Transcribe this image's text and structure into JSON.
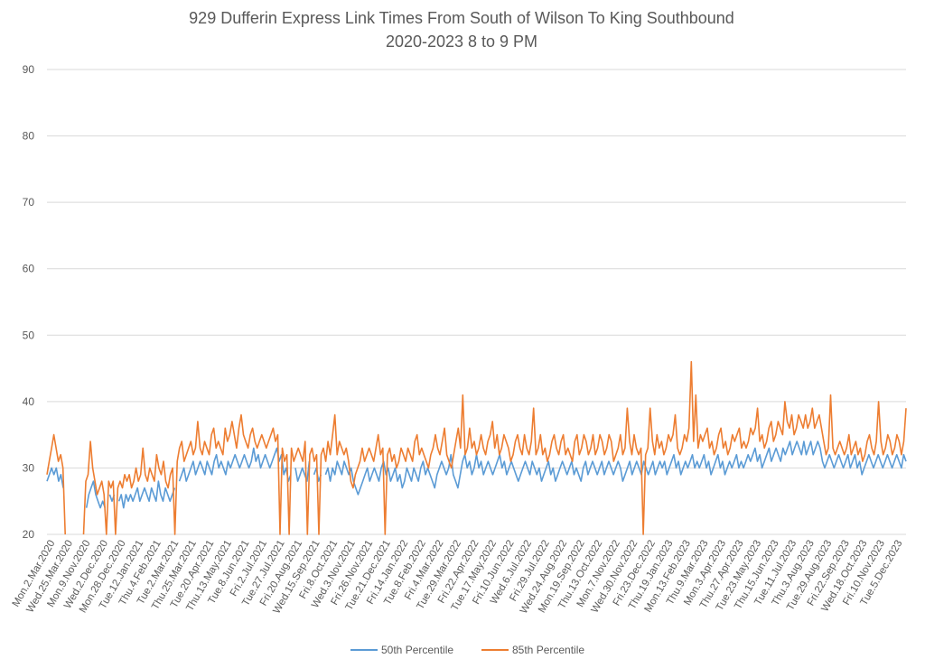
{
  "chart_data": {
    "type": "line",
    "title": "929 Dufferin Express Link Times From South of Wilson To King Southbound",
    "subtitle": "2020-2023 8 to 9 PM",
    "xlabel": "",
    "ylabel": "",
    "ylim": [
      20,
      90
    ],
    "yticks": [
      20,
      30,
      40,
      50,
      60,
      70,
      80,
      90
    ],
    "grid": true,
    "legend_position": "bottom",
    "x_tick_labels": [
      "Mon.2.Mar.2020",
      "Wed.25.Mar.2020",
      "Mon.9.Nov.2020",
      "Wed.2.Dec.2020",
      "Mon.28.Dec.2020",
      "Tue.12.Jan.2021",
      "Thu.4.Feb.2021",
      "Tue.2.Mar.2021",
      "Thu.25.Mar.2021",
      "Tue.20.Apr.2021",
      "Thu.13.May.2021",
      "Tue.8.Jun.2021",
      "Fri.2.Jul.2021",
      "Tue.27.Jul.2021",
      "Fri.20.Aug.2021",
      "Wed.15.Sep.2021",
      "Fri.8.Oct.2021",
      "Wed.3.Nov.2021",
      "Fri.26.Nov.2021",
      "Tue.21.Dec.2021",
      "Fri.14.Jan.2022",
      "Tue.8.Feb.2022",
      "Fri.4.Mar.2022",
      "Tue.29.Mar.2022",
      "Fri.22.Apr.2022",
      "Tue.17.May.2022",
      "Fri.10.Jun.2022",
      "Wed.6.Jul.2022",
      "Fri.29.Jul.2022",
      "Wed.24.Aug.2022",
      "Mon.19.Sep.2022",
      "Thu.13.Oct.2022",
      "Mon.7.Nov.2022",
      "Wed.30.Nov.2022",
      "Fri.23.Dec.2022",
      "Thu.19.Jan.2023",
      "Mon.13.Feb.2023",
      "Thu.9.Mar.2023",
      "Mon.3.Apr.2023",
      "Thu.27.Apr.2023",
      "Tue.23.May.2023",
      "Thu.15.Jun.2023",
      "Tue.11.Jul.2023",
      "Thu.3.Aug.2023",
      "Tue.29.Aug.2023",
      "Fri.22.Sep.2023",
      "Wed.18.Oct.2023",
      "Fri.10.Nov.2023",
      "Tue.5.Dec.2023"
    ],
    "series": [
      {
        "name": "50th Percentile",
        "color": "#5b9bd5",
        "values": [
          28,
          29,
          30,
          29,
          30,
          28,
          29,
          27,
          null,
          null,
          null,
          null,
          null,
          null,
          null,
          null,
          null,
          24,
          26,
          27,
          28,
          26,
          25,
          24,
          25,
          24,
          null,
          26,
          25,
          26,
          null,
          25,
          26,
          24,
          26,
          25,
          26,
          25,
          26,
          27,
          25,
          26,
          27,
          26,
          25,
          27,
          26,
          25,
          28,
          26,
          25,
          27,
          26,
          25,
          26,
          27,
          null,
          28,
          29,
          30,
          28,
          29,
          30,
          31,
          29,
          30,
          31,
          30,
          29,
          31,
          30,
          29,
          31,
          32,
          30,
          31,
          30,
          29,
          31,
          30,
          31,
          32,
          31,
          30,
          31,
          32,
          31,
          30,
          31,
          33,
          31,
          32,
          30,
          31,
          32,
          31,
          30,
          31,
          32,
          33,
          31,
          32,
          29,
          30,
          28,
          29,
          null,
          30,
          28,
          29,
          30,
          29,
          28,
          31,
          null,
          29,
          30,
          28,
          29,
          null,
          29,
          30,
          28,
          30,
          29,
          31,
          30,
          29,
          31,
          30,
          29,
          30,
          28,
          27,
          26,
          27,
          28,
          29,
          30,
          28,
          29,
          30,
          29,
          28,
          30,
          31,
          29,
          30,
          28,
          29,
          30,
          28,
          29,
          27,
          28,
          30,
          29,
          28,
          30,
          29,
          28,
          30,
          31,
          29,
          30,
          29,
          28,
          27,
          29,
          30,
          31,
          30,
          29,
          30,
          32,
          29,
          28,
          27,
          29,
          31,
          32,
          30,
          31,
          29,
          30,
          32,
          30,
          31,
          29,
          30,
          31,
          30,
          29,
          30,
          31,
          32,
          30,
          31,
          29,
          30,
          31,
          30,
          29,
          28,
          29,
          30,
          31,
          30,
          29,
          31,
          30,
          29,
          30,
          28,
          29,
          30,
          31,
          29,
          30,
          28,
          29,
          30,
          31,
          30,
          29,
          30,
          31,
          29,
          30,
          29,
          28,
          30,
          31,
          29,
          30,
          31,
          30,
          29,
          30,
          31,
          29,
          30,
          31,
          30,
          29,
          30,
          31,
          30,
          28,
          29,
          30,
          31,
          29,
          30,
          31,
          30,
          29,
          31,
          30,
          29,
          30,
          31,
          29,
          30,
          31,
          30,
          31,
          29,
          30,
          31,
          32,
          30,
          31,
          29,
          30,
          31,
          30,
          31,
          32,
          30,
          31,
          30,
          31,
          32,
          30,
          31,
          29,
          30,
          31,
          32,
          30,
          31,
          29,
          30,
          31,
          30,
          31,
          32,
          30,
          31,
          30,
          31,
          32,
          31,
          32,
          33,
          31,
          32,
          30,
          31,
          32,
          33,
          31,
          32,
          33,
          32,
          31,
          33,
          32,
          33,
          34,
          32,
          33,
          34,
          33,
          32,
          34,
          32,
          33,
          34,
          32,
          33,
          34,
          33,
          31,
          30,
          31,
          32,
          31,
          30,
          31,
          32,
          31,
          30,
          31,
          32,
          30,
          31,
          32,
          30,
          31,
          29,
          30,
          31,
          32,
          31,
          30,
          31,
          32,
          31,
          30,
          31,
          32,
          31,
          30,
          31,
          32,
          31,
          30,
          32,
          31
        ]
      },
      {
        "name": "85th Percentile",
        "color": "#ed7d31",
        "values": [
          29,
          31,
          33,
          35,
          33,
          31,
          32,
          30,
          20,
          null,
          null,
          null,
          null,
          null,
          null,
          null,
          20,
          28,
          29,
          34,
          30,
          28,
          26,
          27,
          28,
          26,
          20,
          28,
          27,
          28,
          20,
          27,
          28,
          27,
          29,
          28,
          29,
          27,
          28,
          30,
          28,
          29,
          33,
          29,
          28,
          30,
          29,
          28,
          32,
          30,
          29,
          31,
          28,
          27,
          29,
          30,
          20,
          31,
          33,
          34,
          31,
          32,
          33,
          34,
          32,
          33,
          37,
          33,
          32,
          34,
          33,
          32,
          35,
          36,
          33,
          34,
          33,
          32,
          36,
          34,
          35,
          37,
          35,
          33,
          36,
          38,
          35,
          34,
          33,
          35,
          36,
          34,
          33,
          34,
          35,
          34,
          33,
          34,
          35,
          36,
          34,
          35,
          20,
          33,
          31,
          32,
          20,
          33,
          31,
          32,
          33,
          32,
          31,
          34,
          20,
          32,
          33,
          31,
          32,
          20,
          32,
          33,
          31,
          34,
          32,
          35,
          38,
          32,
          34,
          33,
          32,
          33,
          31,
          28,
          27,
          29,
          30,
          31,
          33,
          31,
          32,
          33,
          32,
          31,
          33,
          35,
          32,
          33,
          20,
          32,
          33,
          31,
          32,
          30,
          31,
          33,
          32,
          31,
          33,
          32,
          31,
          34,
          35,
          32,
          33,
          32,
          31,
          30,
          32,
          33,
          35,
          33,
          32,
          34,
          36,
          32,
          31,
          30,
          32,
          34,
          36,
          33,
          41,
          32,
          33,
          36,
          33,
          34,
          32,
          33,
          35,
          33,
          32,
          34,
          35,
          37,
          33,
          35,
          32,
          33,
          35,
          34,
          33,
          31,
          32,
          34,
          35,
          33,
          32,
          35,
          33,
          32,
          34,
          39,
          32,
          33,
          35,
          32,
          33,
          31,
          32,
          34,
          35,
          33,
          32,
          34,
          35,
          32,
          33,
          32,
          31,
          34,
          35,
          32,
          33,
          35,
          34,
          32,
          33,
          35,
          32,
          33,
          35,
          34,
          32,
          33,
          35,
          34,
          31,
          32,
          33,
          35,
          32,
          33,
          39,
          34,
          32,
          35,
          33,
          32,
          33,
          20,
          32,
          33,
          39,
          34,
          32,
          35,
          33,
          34,
          32,
          33,
          35,
          34,
          35,
          38,
          33,
          32,
          33,
          35,
          34,
          36,
          46,
          34,
          41,
          33,
          35,
          34,
          35,
          36,
          33,
          34,
          32,
          33,
          35,
          36,
          33,
          34,
          32,
          33,
          35,
          34,
          35,
          36,
          33,
          34,
          33,
          34,
          36,
          35,
          36,
          39,
          34,
          35,
          33,
          34,
          36,
          37,
          34,
          35,
          37,
          36,
          35,
          40,
          37,
          36,
          38,
          35,
          36,
          38,
          37,
          36,
          38,
          36,
          37,
          39,
          36,
          37,
          38,
          36,
          34,
          32,
          33,
          41,
          33,
          32,
          33,
          34,
          33,
          32,
          33,
          35,
          32,
          33,
          34,
          32,
          33,
          31,
          32,
          34,
          35,
          33,
          32,
          34,
          40,
          34,
          32,
          33,
          35,
          34,
          32,
          33,
          35,
          34,
          32,
          34,
          39
        ]
      }
    ]
  }
}
